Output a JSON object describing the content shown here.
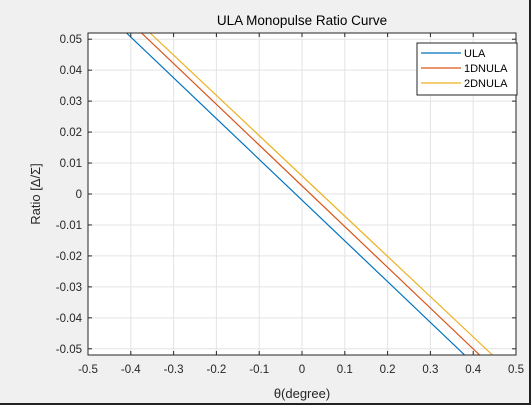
{
  "chart_data": {
    "type": "line",
    "title": "ULA Monopulse Ratio Curve",
    "xlabel": "θ(degree)",
    "ylabel": "Ratio [Δ/Σ]",
    "xlim": [
      -0.5,
      0.5
    ],
    "ylim": [
      -0.052,
      0.052
    ],
    "xticks": [
      "-0.5",
      "-0.4",
      "-0.3",
      "-0.2",
      "-0.1",
      "0",
      "0.1",
      "0.2",
      "0.3",
      "0.4",
      "0.5"
    ],
    "yticks": [
      "0.05",
      "0.04",
      "0.03",
      "0.02",
      "0.01",
      "0",
      "-0.01",
      "-0.02",
      "-0.03",
      "-0.04",
      "-0.05"
    ],
    "grid": true,
    "legend_position": "top-right",
    "series": [
      {
        "name": "ULA",
        "color": "#0072BD",
        "x": [
          -0.41,
          0.38
        ],
        "y": [
          0.052,
          -0.052
        ]
      },
      {
        "name": "1DNULA",
        "color": "#D95319",
        "x": [
          -0.375,
          0.415
        ],
        "y": [
          0.052,
          -0.052
        ]
      },
      {
        "name": "2DNULA",
        "color": "#EDB120",
        "x": [
          -0.355,
          0.445
        ],
        "y": [
          0.052,
          -0.052
        ]
      }
    ]
  }
}
